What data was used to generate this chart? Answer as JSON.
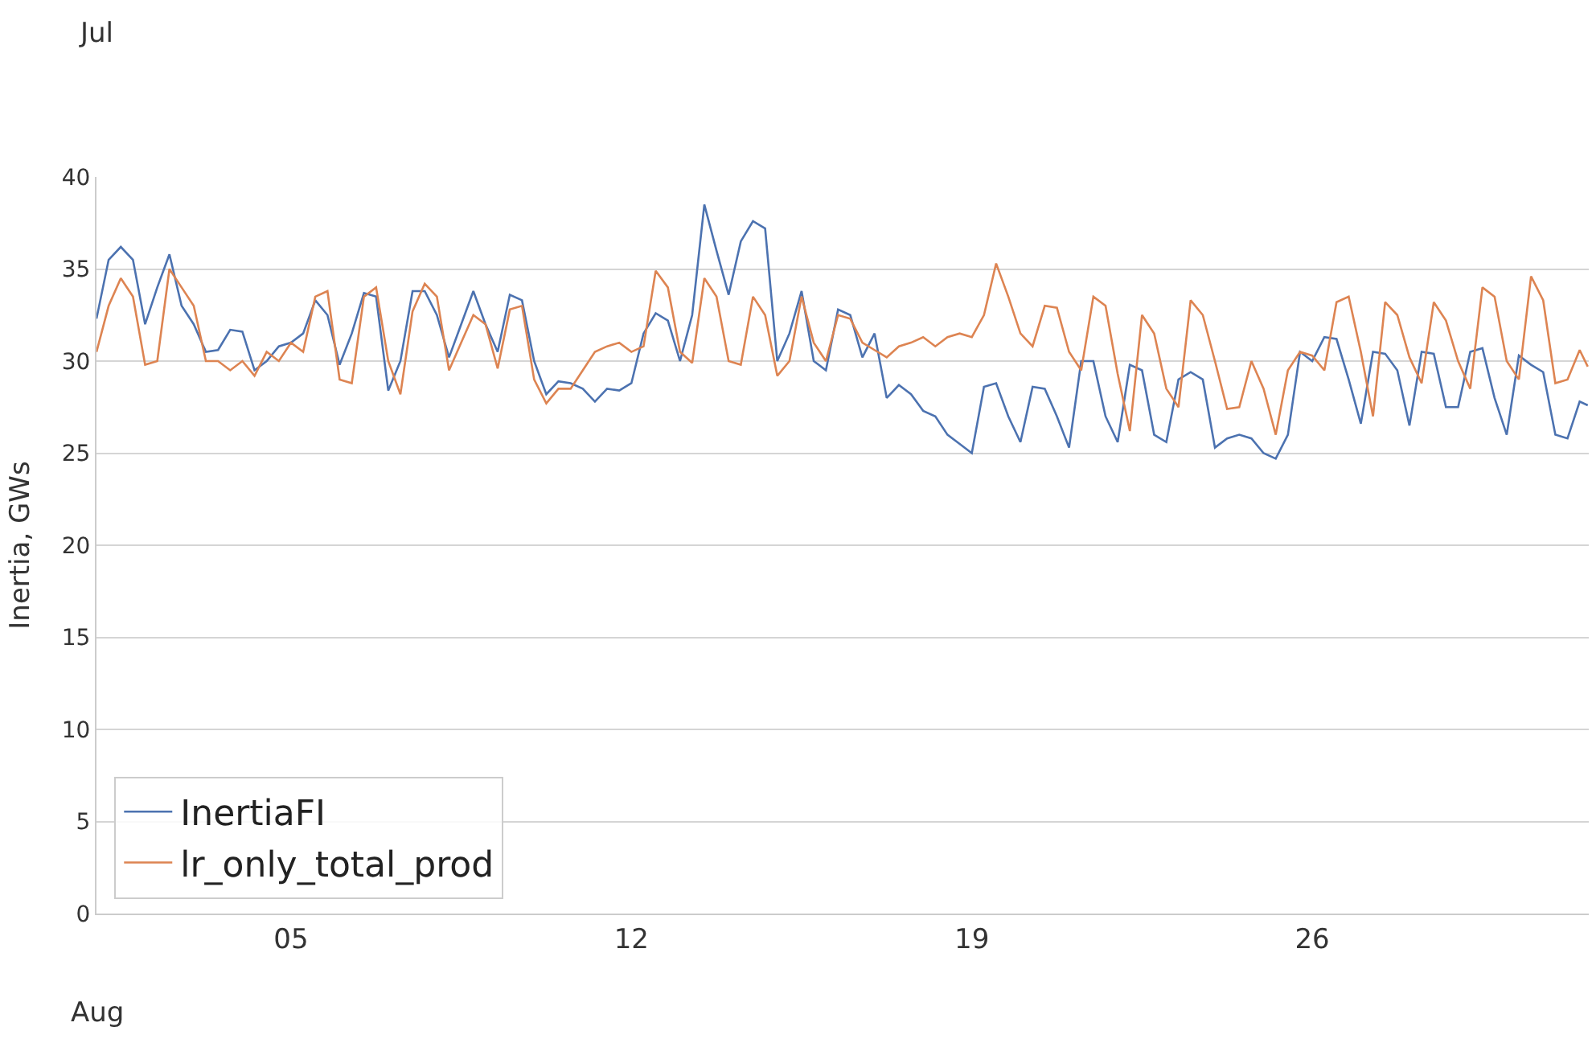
{
  "chart_data": {
    "type": "line",
    "ylabel": "Inertia, GWs",
    "annotations": [
      "Jul",
      "Aug"
    ],
    "x": [
      "--07-01T00:00",
      "--07-01T06:00",
      "--07-01T12:00",
      "--07-01T18:00",
      "--07-02T00:00",
      "--07-02T06:00",
      "--07-02T12:00",
      "--07-02T18:00",
      "--07-03T00:00",
      "--07-03T06:00",
      "--07-03T12:00",
      "--07-03T18:00",
      "--07-04T00:00",
      "--07-04T06:00",
      "--07-04T12:00",
      "--07-04T18:00",
      "--07-05T00:00",
      "--07-05T06:00",
      "--07-05T12:00",
      "--07-05T18:00",
      "--07-06T00:00",
      "--07-06T06:00",
      "--07-06T12:00",
      "--07-06T18:00",
      "--07-07T00:00",
      "--07-07T06:00",
      "--07-07T12:00",
      "--07-07T18:00",
      "--07-08T00:00",
      "--07-08T06:00",
      "--07-08T12:00",
      "--07-08T18:00",
      "--07-09T00:00",
      "--07-09T06:00",
      "--07-09T12:00",
      "--07-09T18:00",
      "--07-10T00:00",
      "--07-10T06:00",
      "--07-10T12:00",
      "--07-10T18:00",
      "--07-11T00:00",
      "--07-11T06:00",
      "--07-11T12:00",
      "--07-11T18:00",
      "--07-12T00:00",
      "--07-12T06:00",
      "--07-12T12:00",
      "--07-12T18:00",
      "--07-13T00:00",
      "--07-13T06:00",
      "--07-13T12:00",
      "--07-13T18:00",
      "--07-14T00:00",
      "--07-14T06:00",
      "--07-14T12:00",
      "--07-14T18:00",
      "--07-15T00:00",
      "--07-15T06:00",
      "--07-15T12:00",
      "--07-15T18:00",
      "--07-16T00:00",
      "--07-16T06:00",
      "--07-16T12:00",
      "--07-16T18:00",
      "--07-17T00:00",
      "--07-17T06:00",
      "--07-17T12:00",
      "--07-17T18:00",
      "--07-18T00:00",
      "--07-18T06:00",
      "--07-18T12:00",
      "--07-18T18:00",
      "--07-19T00:00",
      "--07-19T06:00",
      "--07-19T12:00",
      "--07-19T18:00",
      "--07-20T00:00",
      "--07-20T06:00",
      "--07-20T12:00",
      "--07-20T18:00",
      "--07-21T00:00",
      "--07-21T06:00",
      "--07-21T12:00",
      "--07-21T18:00",
      "--07-22T00:00",
      "--07-22T06:00",
      "--07-22T12:00",
      "--07-22T18:00",
      "--07-23T00:00",
      "--07-23T06:00",
      "--07-23T12:00",
      "--07-23T18:00",
      "--07-24T00:00",
      "--07-24T06:00",
      "--07-24T12:00",
      "--07-24T18:00",
      "--07-25T00:00",
      "--07-25T06:00",
      "--07-25T12:00",
      "--07-25T18:00",
      "--07-26T00:00",
      "--07-26T06:00",
      "--07-26T12:00",
      "--07-26T18:00",
      "--07-27T00:00",
      "--07-27T06:00",
      "--07-27T12:00",
      "--07-27T18:00",
      "--07-28T00:00",
      "--07-28T06:00",
      "--07-28T12:00",
      "--07-28T18:00",
      "--07-29T00:00",
      "--07-29T06:00",
      "--07-29T12:00",
      "--07-29T18:00",
      "--07-30T00:00",
      "--07-30T06:00",
      "--07-30T12:00",
      "--07-30T18:00",
      "--07-31T00:00",
      "--07-31T06:00",
      "--07-31T12:00",
      "--07-31T16:00"
    ],
    "series": [
      {
        "name": "InertiaFI",
        "color": "#4c72b0",
        "values": [
          32.3,
          35.5,
          36.2,
          35.5,
          32,
          34,
          35.8,
          33,
          32,
          30.5,
          30.6,
          31.7,
          31.6,
          29.5,
          30,
          30.8,
          31,
          31.5,
          33.3,
          32.5,
          29.8,
          31.5,
          33.7,
          33.5,
          28.4,
          30,
          33.8,
          33.8,
          32.5,
          30.2,
          32,
          33.8,
          32,
          30.5,
          33.6,
          33.3,
          30,
          28.2,
          28.9,
          28.8,
          28.5,
          27.8,
          28.5,
          28.4,
          28.8,
          31.5,
          32.6,
          32.2,
          30,
          32.5,
          38.5,
          36,
          33.6,
          36.5,
          37.6,
          37.2,
          30,
          31.5,
          33.8,
          30,
          29.5,
          32.8,
          32.5,
          30.2,
          31.5,
          28,
          28.7,
          28.2,
          27.3,
          27,
          26,
          25.5,
          25,
          28.6,
          28.8,
          27,
          25.6,
          28.6,
          28.5,
          27,
          25.3,
          30,
          30,
          27,
          25.6,
          29.8,
          29.5,
          26,
          25.6,
          29,
          29.4,
          29,
          25.3,
          25.8,
          26,
          25.8,
          25,
          24.7,
          26,
          30.5,
          30,
          31.3,
          31.2,
          29,
          26.6,
          30.5,
          30.4,
          29.5,
          26.5,
          30.5,
          30.4,
          27.5,
          27.5,
          30.5,
          30.7,
          28,
          26,
          30.3,
          29.8,
          29.4,
          26,
          25.8,
          27.8,
          27.6
        ]
      },
      {
        "name": "lr_only_total_prod",
        "color": "#dd8452",
        "values": [
          30.5,
          33,
          34.5,
          33.5,
          29.8,
          30,
          35,
          34,
          33,
          30,
          30,
          29.5,
          30,
          29.2,
          30.5,
          30,
          31,
          30.5,
          33.5,
          33.8,
          29,
          28.8,
          33.5,
          34,
          30,
          28.2,
          32.7,
          34.2,
          33.5,
          29.5,
          31,
          32.5,
          32,
          29.6,
          32.8,
          33,
          29,
          27.7,
          28.5,
          28.5,
          29.5,
          30.5,
          30.8,
          31,
          30.5,
          30.8,
          34.9,
          34,
          30.5,
          29.9,
          34.5,
          33.5,
          30,
          29.8,
          33.5,
          32.5,
          29.2,
          30,
          33.5,
          31,
          30,
          32.5,
          32.3,
          31,
          30.6,
          30.2,
          30.8,
          31,
          31.3,
          30.8,
          31.3,
          31.5,
          31.3,
          32.5,
          35.3,
          33.5,
          31.5,
          30.8,
          33,
          32.9,
          30.5,
          29.5,
          33.5,
          33,
          29.3,
          26.2,
          32.5,
          31.5,
          28.5,
          27.5,
          33.3,
          32.5,
          30,
          27.4,
          27.5,
          30,
          28.5,
          26,
          29.5,
          30.5,
          30.3,
          29.5,
          33.2,
          33.5,
          30.5,
          27,
          33.2,
          32.5,
          30.2,
          28.8,
          33.2,
          32.2,
          30,
          28.5,
          34,
          33.5,
          30,
          29,
          34.6,
          33.3,
          28.8,
          29,
          30.6,
          29.7
        ]
      }
    ],
    "xlim": [
      "--07-01T00:00",
      "--07-31T16:30"
    ],
    "xticks": [
      {
        "value": "--07-05",
        "label": "05"
      },
      {
        "value": "--07-12",
        "label": "12"
      },
      {
        "value": "--07-19",
        "label": "19"
      },
      {
        "value": "--07-26",
        "label": "26"
      }
    ],
    "ylim": [
      0,
      40
    ],
    "yticks": [
      0,
      5,
      10,
      15,
      20,
      25,
      30,
      35,
      40
    ],
    "grid": "y",
    "legend": "bottom left",
    "marker": "none",
    "line_style": "solid"
  }
}
